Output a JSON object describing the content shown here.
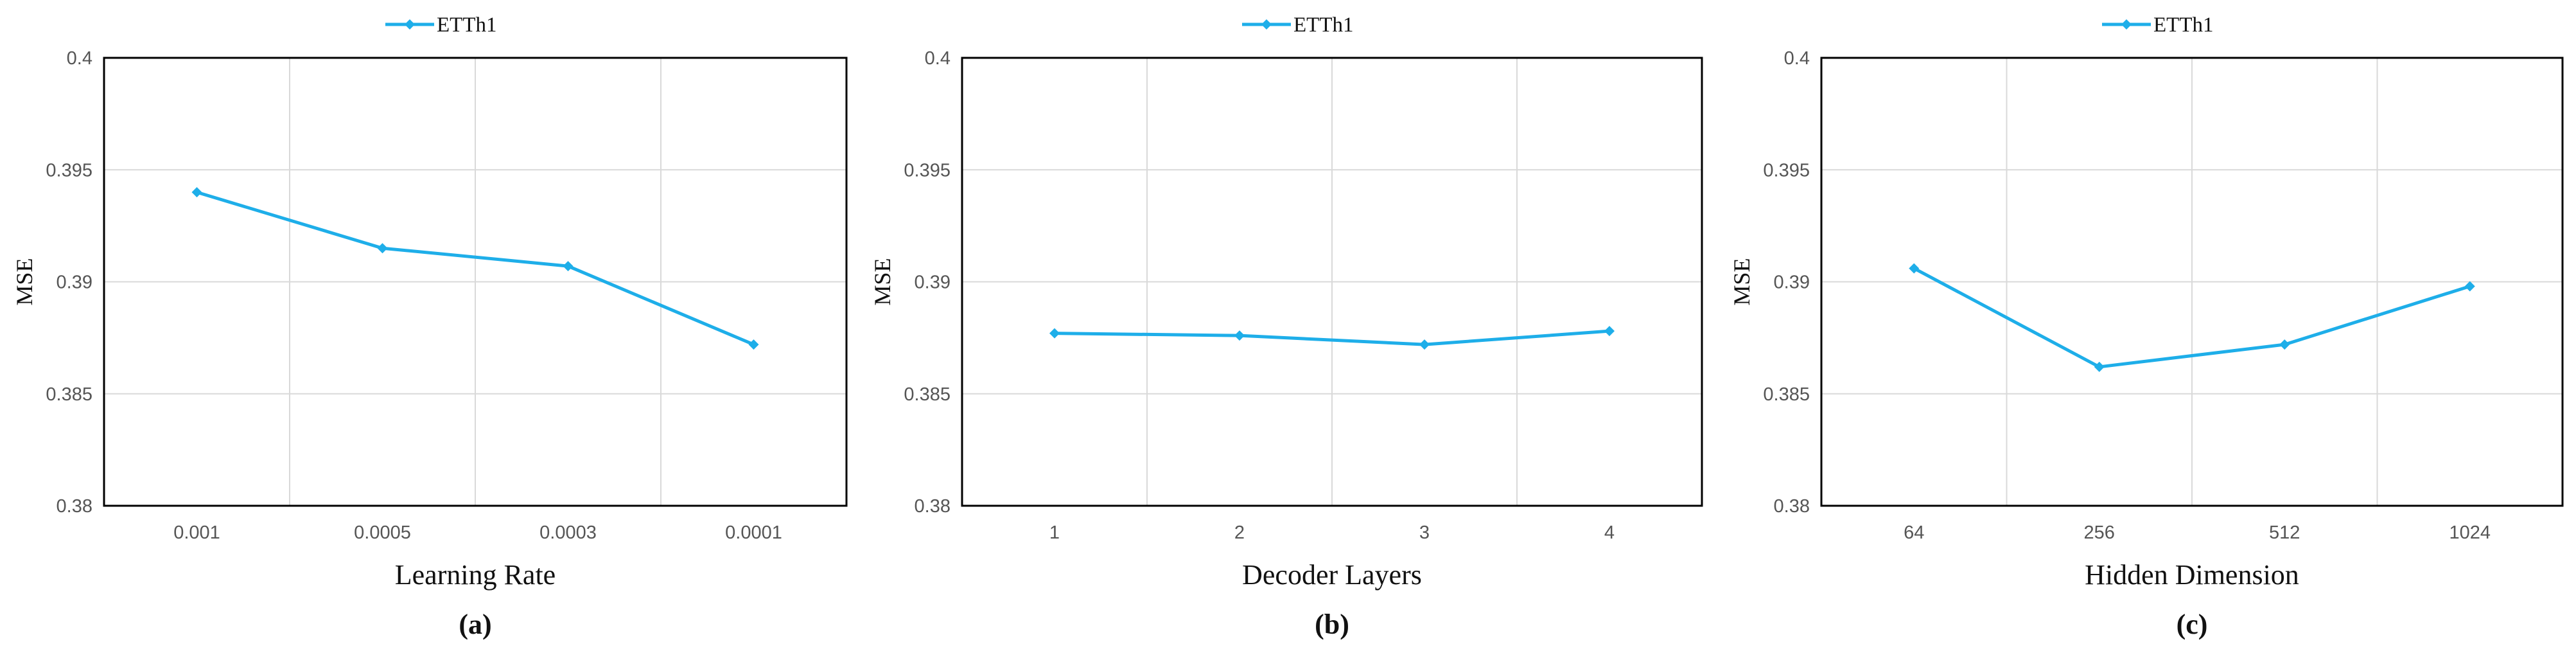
{
  "colors": {
    "series": "#1EAEE9",
    "grid": "#D9D9D9",
    "frame": "#000000"
  },
  "chart_data": [
    {
      "type": "line",
      "panel_label": "(a)",
      "categories": [
        "0.001",
        "0.0005",
        "0.0003",
        "0.0001"
      ],
      "series": [
        {
          "name": "ETTh1",
          "values": [
            0.394,
            0.3915,
            0.3907,
            0.3872
          ]
        }
      ],
      "xlabel": "Learning Rate",
      "ylabel": "MSE",
      "ylim": [
        0.38,
        0.4
      ],
      "yticks": [
        "0.38",
        "0.385",
        "0.39",
        "0.395",
        "0.4"
      ],
      "grid": true,
      "legend": "top"
    },
    {
      "type": "line",
      "panel_label": "(b)",
      "categories": [
        "1",
        "2",
        "3",
        "4"
      ],
      "series": [
        {
          "name": "ETTh1",
          "values": [
            0.3877,
            0.3876,
            0.3872,
            0.3878
          ]
        }
      ],
      "xlabel": "Decoder Layers",
      "ylabel": "MSE",
      "ylim": [
        0.38,
        0.4
      ],
      "yticks": [
        "0.38",
        "0.385",
        "0.39",
        "0.395",
        "0.4"
      ],
      "grid": true,
      "legend": "top"
    },
    {
      "type": "line",
      "panel_label": "(c)",
      "categories": [
        "64",
        "256",
        "512",
        "1024"
      ],
      "series": [
        {
          "name": "ETTh1",
          "values": [
            0.3906,
            0.3862,
            0.3872,
            0.3898
          ]
        }
      ],
      "xlabel": "Hidden Dimension",
      "ylabel": "MSE",
      "ylim": [
        0.38,
        0.4
      ],
      "yticks": [
        "0.38",
        "0.385",
        "0.39",
        "0.395",
        "0.4"
      ],
      "grid": true,
      "legend": "top"
    }
  ]
}
